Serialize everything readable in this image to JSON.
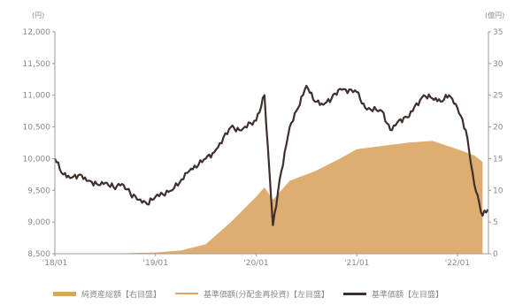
{
  "chart_data": {
    "type": "line",
    "title": "",
    "left_axis": {
      "unit": "(円)",
      "ylim": [
        8500,
        12000
      ],
      "ticks": [
        "8,500",
        "9,000",
        "9,500",
        "10,000",
        "10,500",
        "11,000",
        "11,500",
        "12,000"
      ]
    },
    "right_axis": {
      "unit": "(億円)",
      "ylim": [
        0,
        35
      ],
      "ticks": [
        "0",
        "5",
        "10",
        "15",
        "20",
        "25",
        "30",
        "35"
      ]
    },
    "x_ticks": [
      "'18/01",
      "'19/01",
      "'20/01",
      "'21/01",
      "'22/01"
    ],
    "x_range": [
      "2018-01",
      "2022-04"
    ],
    "legend_placement": "bottom",
    "series": [
      {
        "name": "純資産総額【右目盛】",
        "kind": "area",
        "axis": "right",
        "color": "#d9a55f",
        "points": [
          [
            "2018-01",
            0
          ],
          [
            "2018-07",
            0
          ],
          [
            "2019-01",
            0.2
          ],
          [
            "2019-04",
            0.5
          ],
          [
            "2019-07",
            1.5
          ],
          [
            "2019-10",
            5.0
          ],
          [
            "2020-01",
            9.0
          ],
          [
            "2020-02",
            10.5
          ],
          [
            "2020-03",
            8.5
          ],
          [
            "2020-05",
            11.5
          ],
          [
            "2020-08",
            13.0
          ],
          [
            "2020-11",
            15.0
          ],
          [
            "2021-01",
            16.5
          ],
          [
            "2021-04",
            17.0
          ],
          [
            "2021-07",
            17.5
          ],
          [
            "2021-10",
            17.8
          ],
          [
            "2022-01",
            16.5
          ],
          [
            "2022-03",
            15.5
          ],
          [
            "2022-04",
            14.5
          ]
        ]
      },
      {
        "name": "基準価額(分配金再投資)【左目盛】",
        "kind": "line",
        "axis": "left",
        "color": "#e0a860",
        "points": []
      },
      {
        "name": "基準価額【左目盛】",
        "kind": "line",
        "axis": "left",
        "color": "#3f302d",
        "points": [
          [
            "2018-01",
            10000
          ],
          [
            "2018-02",
            9750
          ],
          [
            "2018-03",
            9700
          ],
          [
            "2018-04",
            9750
          ],
          [
            "2018-05",
            9650
          ],
          [
            "2018-06",
            9600
          ],
          [
            "2018-07",
            9620
          ],
          [
            "2018-08",
            9550
          ],
          [
            "2018-09",
            9600
          ],
          [
            "2018-10",
            9450
          ],
          [
            "2018-11",
            9350
          ],
          [
            "2018-12",
            9280
          ],
          [
            "2019-01",
            9400
          ],
          [
            "2019-03",
            9500
          ],
          [
            "2019-05",
            9800
          ],
          [
            "2019-07",
            10000
          ],
          [
            "2019-08",
            10100
          ],
          [
            "2019-10",
            10500
          ],
          [
            "2019-11",
            10450
          ],
          [
            "2020-01",
            10600
          ],
          [
            "2020-02",
            11000
          ],
          [
            "2020-03",
            8950
          ],
          [
            "2020-04",
            9800
          ],
          [
            "2020-05",
            10500
          ],
          [
            "2020-06",
            10800
          ],
          [
            "2020-07",
            11150
          ],
          [
            "2020-08",
            10900
          ],
          [
            "2020-09",
            10850
          ],
          [
            "2020-10",
            10950
          ],
          [
            "2020-11",
            11100
          ],
          [
            "2021-01",
            11050
          ],
          [
            "2021-02",
            10800
          ],
          [
            "2021-04",
            10750
          ],
          [
            "2021-05",
            10450
          ],
          [
            "2021-06",
            10600
          ],
          [
            "2021-07",
            10650
          ],
          [
            "2021-09",
            11000
          ],
          [
            "2021-10",
            10950
          ],
          [
            "2021-11",
            10900
          ],
          [
            "2021-12",
            11000
          ],
          [
            "2022-01",
            10800
          ],
          [
            "2022-02",
            10450
          ],
          [
            "2022-03",
            9600
          ],
          [
            "2022-04",
            9100
          ],
          [
            "2022-04-20",
            9200
          ]
        ]
      }
    ]
  }
}
